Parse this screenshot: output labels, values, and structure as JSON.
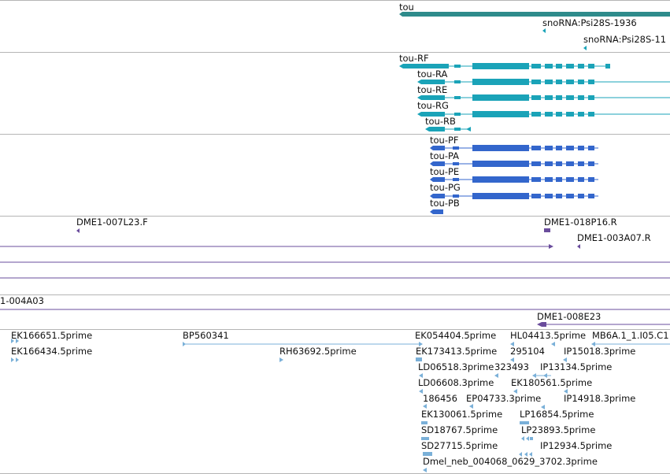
{
  "labels": {
    "gene_tou": "tou",
    "sno1": "snoRNA:Psi28S-1936",
    "sno2": "snoRNA:Psi28S-11",
    "tx_rf": "tou-RF",
    "tx_ra": "tou-RA",
    "tx_re": "tou-RE",
    "tx_rg": "tou-RG",
    "tx_rb": "tou-RB",
    "pp_pf": "tou-PF",
    "pp_pa": "tou-PA",
    "pp_pe": "tou-PE",
    "pp_pg": "tou-PG",
    "pp_pb": "tou-PB",
    "clone_1": "DME1-007L23.F",
    "clone_2": "DME1-018P16.R",
    "clone_3": "DME1-003A07.R",
    "clone_4": "1-004A03",
    "clone_5": "DME1-008E23",
    "est_1": "EK166651.5prime",
    "est_2": "EK166434.5prime",
    "est_3": "BP560341",
    "est_4": "RH63692.5prime",
    "est_5": "EK054404.5prime",
    "est_6": "EK173413.5prime",
    "est_7": "LD06518.3prime",
    "est_8": "LD06608.3prime",
    "est_9": "186456",
    "est_10": "EK130061.5prime",
    "est_11": "SD18767.5prime",
    "est_12": "SD27715.5prime",
    "est_13": "Dmel_neb_004068_0629_3702.3prime",
    "est_14": "HL04413.5prime",
    "est_15": "295104",
    "est_16": "323493",
    "est_17": "EP04733.3prime",
    "est_18": "IP13134.5prime",
    "est_19": "EK180561.5prime",
    "est_20": "LP16854.5prime",
    "est_21": "LP23893.5prime",
    "est_22": "IP12934.5prime",
    "est_23": "MB6A.1_1.I05.C1",
    "est_24": "IP15018.3prime",
    "est_25": "IP14918.3prime"
  },
  "colors": {
    "gene": "#2e8b8b",
    "transcript": "#1aa3b8",
    "polypeptide": "#3366cc",
    "clone": "#6a4c9c",
    "est": "#7ab0d8",
    "separator": "#b5b5b5"
  }
}
